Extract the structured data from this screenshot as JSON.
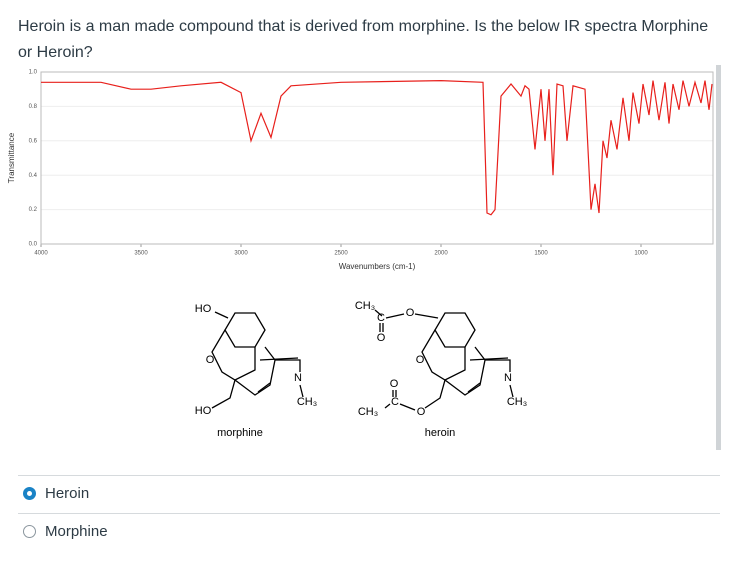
{
  "question": "Heroin is a man made compound that is derived from morphine. Is the below IR spectra Morphine or Heroin?",
  "chart_data": {
    "type": "line",
    "x_label": "Wavenumbers (cm-1)",
    "y_label": "Transmittance",
    "color": "#e8201c",
    "x": [
      4000,
      3700,
      3550,
      3450,
      3300,
      3100,
      3000,
      2950,
      2900,
      2850,
      2800,
      2750,
      2500,
      2000,
      1790,
      1770,
      1750,
      1730,
      1700,
      1650,
      1600,
      1580,
      1560,
      1530,
      1500,
      1480,
      1460,
      1440,
      1420,
      1390,
      1370,
      1340,
      1280,
      1250,
      1230,
      1210,
      1190,
      1170,
      1150,
      1120,
      1090,
      1060,
      1040,
      1010,
      990,
      960,
      940,
      910,
      880,
      860,
      840,
      810,
      790,
      760,
      730,
      700,
      680,
      660,
      645
    ],
    "values": [
      0.94,
      0.94,
      0.9,
      0.9,
      0.92,
      0.94,
      0.88,
      0.6,
      0.76,
      0.62,
      0.86,
      0.92,
      0.94,
      0.95,
      0.94,
      0.18,
      0.17,
      0.2,
      0.86,
      0.93,
      0.86,
      0.92,
      0.9,
      0.55,
      0.9,
      0.6,
      0.9,
      0.4,
      0.93,
      0.92,
      0.6,
      0.92,
      0.9,
      0.2,
      0.35,
      0.18,
      0.6,
      0.5,
      0.72,
      0.55,
      0.85,
      0.6,
      0.88,
      0.7,
      0.93,
      0.75,
      0.95,
      0.72,
      0.94,
      0.7,
      0.93,
      0.78,
      0.95,
      0.8,
      0.94,
      0.82,
      0.95,
      0.78,
      0.93
    ],
    "xlim": [
      4000,
      640
    ],
    "xticks": [
      4000,
      3500,
      3000,
      2500,
      2000,
      1500,
      1000
    ],
    "ylim": [
      0,
      1
    ],
    "yticks": [
      {
        "value": 0,
        "label": "0.0"
      },
      0.2,
      0.4,
      0.6,
      0.8,
      {
        "value": 1,
        "label": "1.0"
      }
    ],
    "grid": true
  },
  "structures": [
    {
      "name": "morphine",
      "labels": [
        "HO",
        "O",
        "N",
        "CH₃",
        "HO"
      ]
    },
    {
      "name": "heroin",
      "labels": [
        "CH₃",
        "C",
        "O",
        "O",
        "O",
        "N",
        "CH₃",
        "O",
        "C",
        "CH₃",
        "O"
      ]
    }
  ],
  "options": [
    {
      "label": "Heroin",
      "selected": true
    },
    {
      "label": "Morphine",
      "selected": false
    }
  ]
}
